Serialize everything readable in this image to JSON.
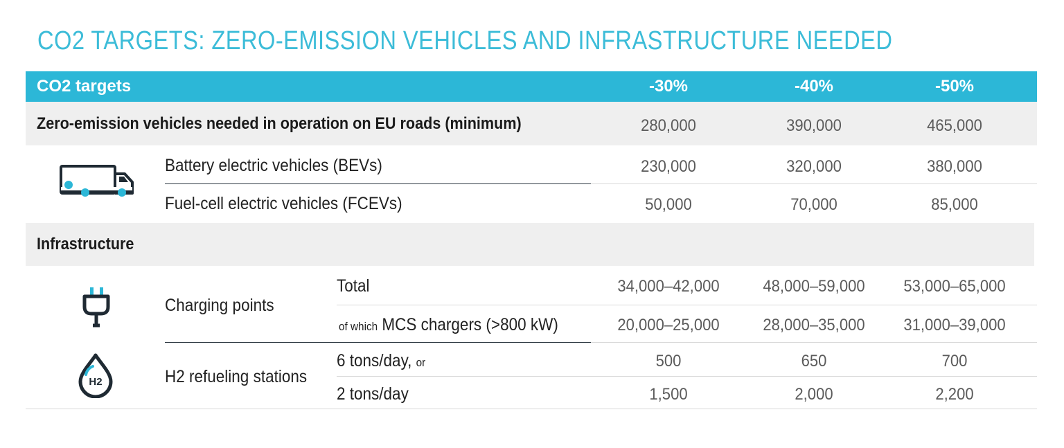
{
  "title": "CO2 TARGETS: ZERO-EMISSION VEHICLES AND INFRASTRUCTURE NEEDED",
  "header": {
    "label": "CO2 targets",
    "columns": [
      "-30%",
      "-40%",
      "-50%"
    ]
  },
  "zev": {
    "label": "Zero-emission vehicles needed in operation on EU roads (minimum)",
    "values": [
      "280,000",
      "390,000",
      "465,000"
    ],
    "rows": [
      {
        "label": "Battery electric vehicles (BEVs)",
        "values": [
          "230,000",
          "320,000",
          "380,000"
        ]
      },
      {
        "label": "Fuel-cell electric vehicles (FCEVs)",
        "values": [
          "50,000",
          "70,000",
          "85,000"
        ]
      }
    ]
  },
  "infrastructure": {
    "label": "Infrastructure",
    "charging": {
      "label": "Charging points",
      "rows": [
        {
          "prefix": "",
          "label": "Total",
          "values": [
            "34,000–42,000",
            "48,000–59,000",
            "53,000–65,000"
          ]
        },
        {
          "prefix": "of which",
          "label": "MCS chargers (>800 kW)",
          "values": [
            "20,000–25,000",
            "28,000–35,000",
            "31,000–39,000"
          ]
        }
      ]
    },
    "h2": {
      "label": "H2 refueling stations",
      "icon_text": "H2",
      "rows": [
        {
          "label": "6 tons/day,",
          "suffix": "or",
          "values": [
            "500",
            "650",
            "700"
          ]
        },
        {
          "label": "2 tons/day",
          "suffix": "",
          "values": [
            "1,500",
            "2,000",
            "2,200"
          ]
        }
      ]
    }
  },
  "icons": {
    "truck": "truck-icon",
    "plug": "plug-icon",
    "h2": "h2-droplet-icon"
  },
  "colors": {
    "accent": "#2cb7d7",
    "title": "#3cbcd8",
    "band": "#efefef",
    "icon_dark": "#1f2a33"
  }
}
